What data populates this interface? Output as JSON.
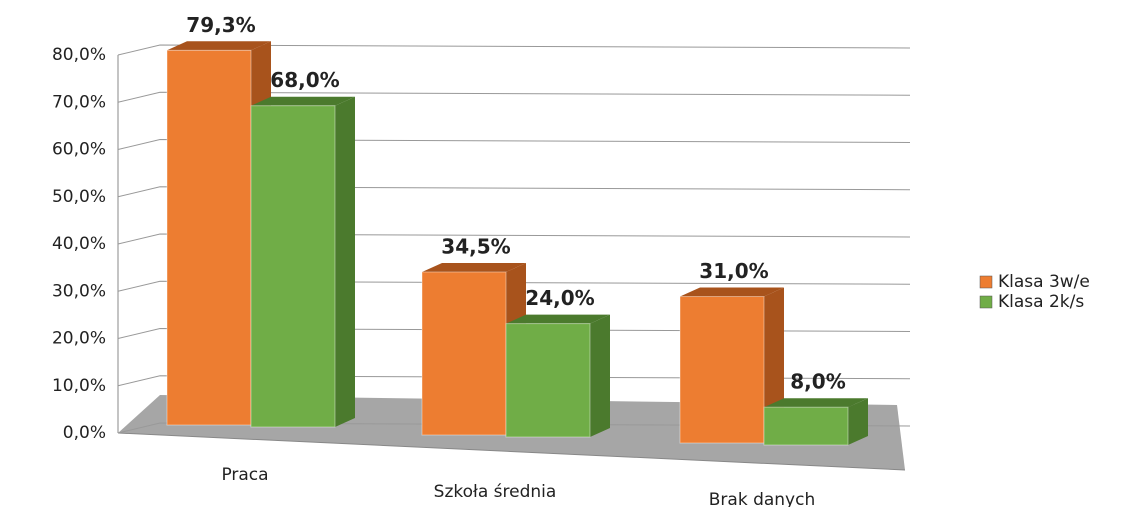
{
  "chart_data": {
    "type": "bar3d",
    "categories": [
      "Praca",
      "Szkoła średnia",
      "Brak danych"
    ],
    "series": [
      {
        "name": "Klasa 3w/e",
        "color": "#ed7d31",
        "values": [
          79.3,
          34.5,
          31.0
        ],
        "value_labels": [
          "79,3%",
          "34,5%",
          "31,0%"
        ]
      },
      {
        "name": "Klasa 2k/s",
        "color": "#70ad47",
        "values": [
          68.0,
          24.0,
          8.0
        ],
        "value_labels": [
          "68,0%",
          "24,0%",
          "8,0%"
        ]
      }
    ],
    "ylim": [
      0,
      80
    ],
    "yticks": [
      {
        "value": 0,
        "label": "0,0%"
      },
      {
        "value": 10,
        "label": "10,0%"
      },
      {
        "value": 20,
        "label": "20,0%"
      },
      {
        "value": 30,
        "label": "30,0%"
      },
      {
        "value": 40,
        "label": "40,0%"
      },
      {
        "value": 50,
        "label": "50,0%"
      },
      {
        "value": 60,
        "label": "60,0%"
      },
      {
        "value": 70,
        "label": "70,0%"
      },
      {
        "value": 80,
        "label": "80,0%"
      }
    ],
    "grid": true,
    "legend": "right"
  }
}
